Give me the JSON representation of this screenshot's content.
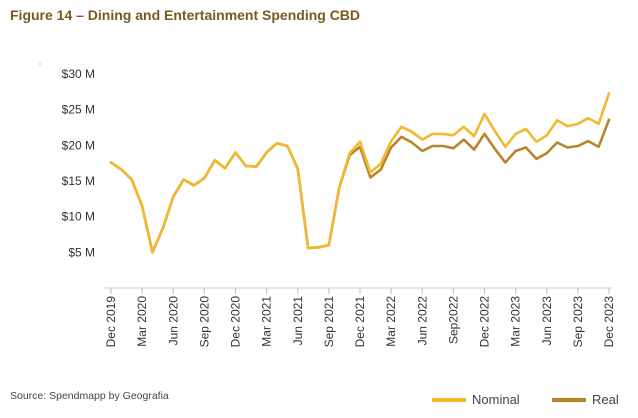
{
  "chart_data": {
    "type": "line",
    "title": "Figure 14 – Dining and Entertainment Spending CBD",
    "source": "Source: Spendmapp by Geografia",
    "xlabel": "",
    "ylabel": "",
    "ylim": [
      0,
      30
    ],
    "yticks": [
      5,
      10,
      15,
      20,
      25,
      30
    ],
    "ytick_labels": [
      "$5 M",
      "$10 M",
      "$15 M",
      "$20 M",
      "$25 M",
      "$30 M"
    ],
    "x_tick_labels": [
      "Dec 2019",
      "Mar 2020",
      "Jun 2020",
      "Sep 2020",
      "Dec 2020",
      "Mar 2021",
      "Jun 2021",
      "Sep 2021",
      "Dec 2021",
      "Mar 2022",
      "Jun 2022",
      "Sep2022",
      "Dec 2022",
      "Mar 2023",
      "Jun 2023",
      "Sep 2023",
      "Dec 2023"
    ],
    "legend_position": "bottom-right",
    "series": [
      {
        "name": "Nominal",
        "color": "#f2b82f",
        "values": [
          17.6,
          16.6,
          15.2,
          11.5,
          5.0,
          8.4,
          12.8,
          15.2,
          14.4,
          15.4,
          17.9,
          16.8,
          19.0,
          17.1,
          17.0,
          19.0,
          20.3,
          19.9,
          16.7,
          5.6,
          5.7,
          6.0,
          14.1,
          18.9,
          20.5,
          16.2,
          17.4,
          20.6,
          22.6,
          21.9,
          20.8,
          21.6,
          21.6,
          21.4,
          22.6,
          21.3,
          24.4,
          22.0,
          19.8,
          21.6,
          22.3,
          20.5,
          21.4,
          23.5,
          22.7,
          23.0,
          23.8,
          23.0,
          27.3
        ]
      },
      {
        "name": "Real",
        "color": "#b8862a",
        "values": [
          17.6,
          16.6,
          15.2,
          11.5,
          5.0,
          8.4,
          12.8,
          15.2,
          14.4,
          15.4,
          17.9,
          16.8,
          19.0,
          17.1,
          17.0,
          19.0,
          20.3,
          19.9,
          16.7,
          5.6,
          5.7,
          6.0,
          14.1,
          18.6,
          19.8,
          15.5,
          16.6,
          19.7,
          21.2,
          20.4,
          19.2,
          19.9,
          19.9,
          19.6,
          20.8,
          19.4,
          21.6,
          19.5,
          17.6,
          19.2,
          19.7,
          18.1,
          18.9,
          20.4,
          19.7,
          19.9,
          20.6,
          19.8,
          23.6
        ]
      }
    ]
  }
}
